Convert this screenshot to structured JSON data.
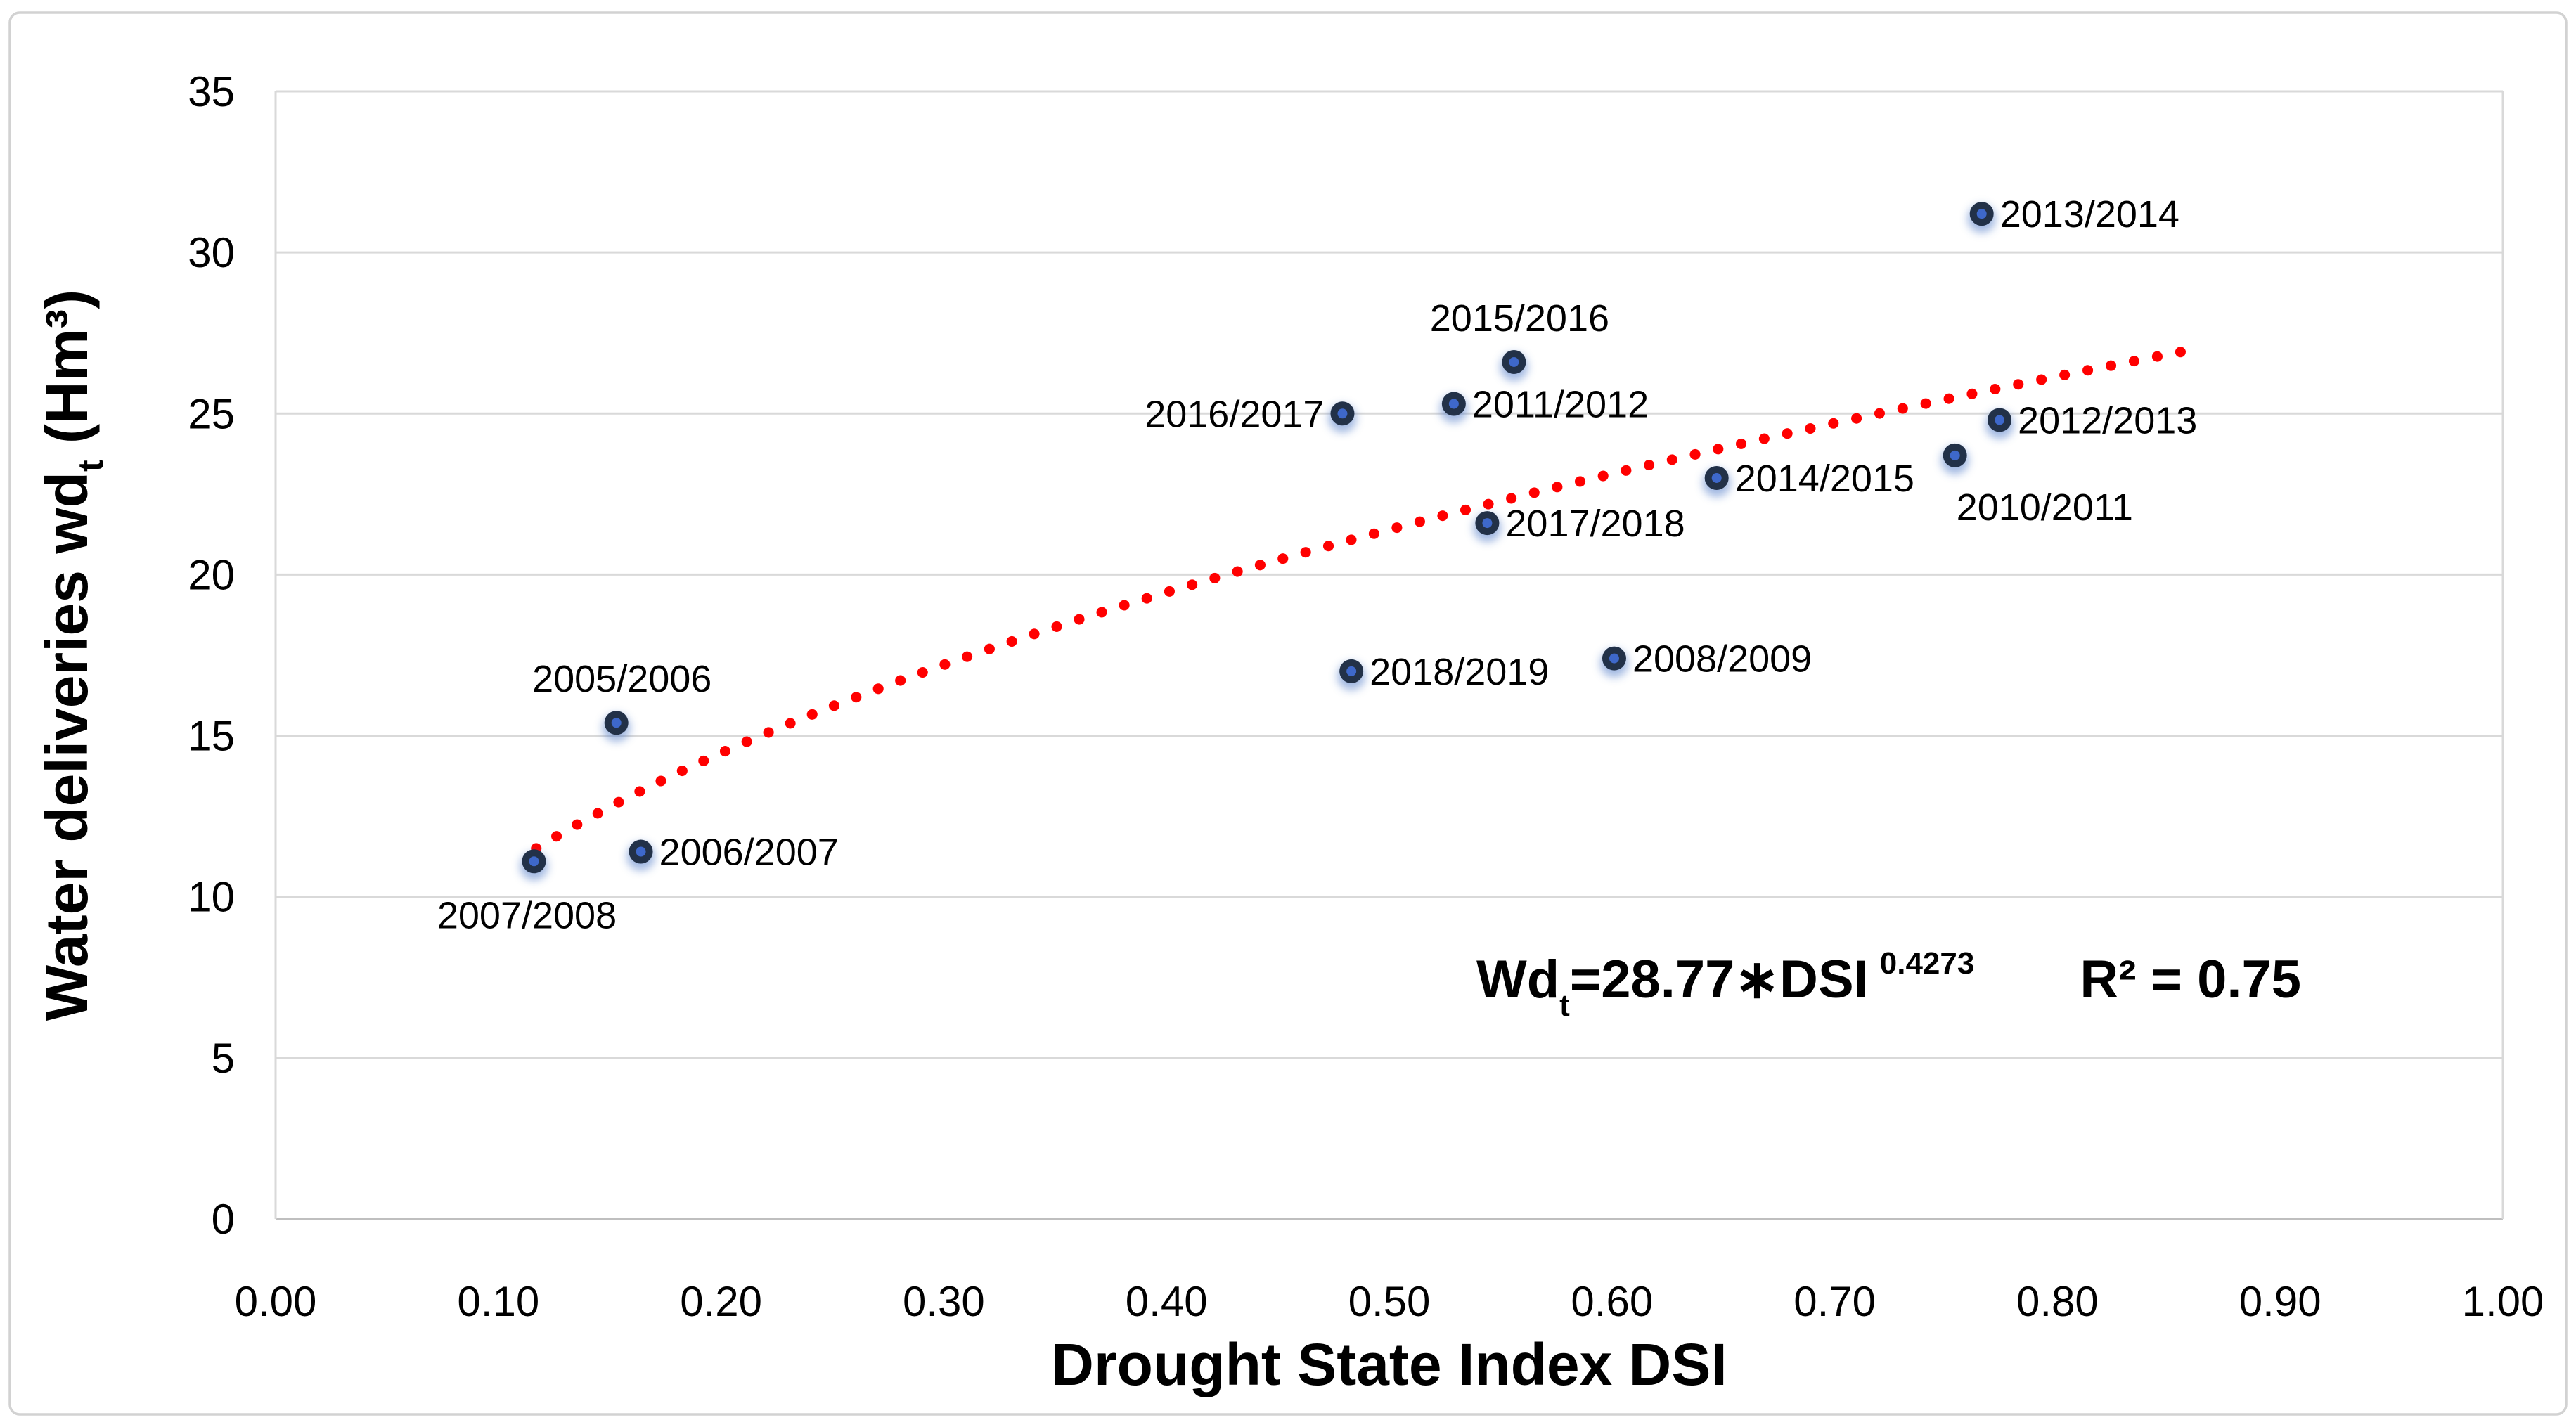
{
  "chart_data": {
    "type": "scatter",
    "xlabel": "Drought State Index DSI",
    "ylabel_parts": {
      "prefix": "Water deliveries wd",
      "sub": "t",
      "suffix": " (Hm³)"
    },
    "xlim": [
      0.0,
      1.0
    ],
    "ylim": [
      0,
      35
    ],
    "x_ticks": [
      "0.00",
      "0.10",
      "0.20",
      "0.30",
      "0.40",
      "0.50",
      "0.60",
      "0.70",
      "0.80",
      "0.90",
      "1.00"
    ],
    "x_tick_values": [
      0.0,
      0.1,
      0.2,
      0.3,
      0.4,
      0.5,
      0.6,
      0.7,
      0.8,
      0.9,
      1.0
    ],
    "y_ticks": [
      "0",
      "5",
      "10",
      "15",
      "20",
      "25",
      "30",
      "35"
    ],
    "y_tick_values": [
      0,
      5,
      10,
      15,
      20,
      25,
      30,
      35
    ],
    "grid": "horizontal",
    "points": [
      {
        "label": "2005/2006",
        "x": 0.153,
        "y": 15.4,
        "label_pos": "above"
      },
      {
        "label": "2006/2007",
        "x": 0.164,
        "y": 11.4,
        "label_pos": "right"
      },
      {
        "label": "2007/2008",
        "x": 0.116,
        "y": 11.1,
        "label_pos": "below"
      },
      {
        "label": "2008/2009",
        "x": 0.601,
        "y": 17.4,
        "label_pos": "right"
      },
      {
        "label": "2010/2011",
        "x": 0.754,
        "y": 23.7,
        "label_pos": "below-right"
      },
      {
        "label": "2011/2012",
        "x": 0.529,
        "y": 25.3,
        "label_pos": "right"
      },
      {
        "label": "2012/2013",
        "x": 0.774,
        "y": 24.8,
        "label_pos": "right"
      },
      {
        "label": "2013/2014",
        "x": 0.766,
        "y": 31.2,
        "label_pos": "right"
      },
      {
        "label": "2014/2015",
        "x": 0.647,
        "y": 23.0,
        "label_pos": "right"
      },
      {
        "label": "2015/2016",
        "x": 0.556,
        "y": 26.6,
        "label_pos": "above"
      },
      {
        "label": "2016/2017",
        "x": 0.479,
        "y": 25.0,
        "label_pos": "left"
      },
      {
        "label": "2017/2018",
        "x": 0.544,
        "y": 21.6,
        "label_pos": "right"
      },
      {
        "label": "2018/2019",
        "x": 0.483,
        "y": 17.0,
        "label_pos": "right"
      }
    ],
    "trendline": {
      "type": "power",
      "coefficient": 28.77,
      "exponent": 0.4273,
      "x_start": 0.117,
      "x_end": 0.865,
      "style": "dotted"
    },
    "equation": {
      "lhs": "Wd",
      "lhs_sub": "t",
      "body": "=28.77∗DSI",
      "exponent": "0.4273",
      "r2": "R² = 0.75"
    },
    "legend": "none",
    "colors": {
      "trend": "#FF0000",
      "marker_ring": "#223148",
      "marker_core": "#3E68CA",
      "marker_glow": "#4472C4",
      "gridline": "#D9D9D9",
      "axis_line": "#BFBFBF",
      "frame_border": "#D2D2D2",
      "text": "#000000"
    }
  }
}
